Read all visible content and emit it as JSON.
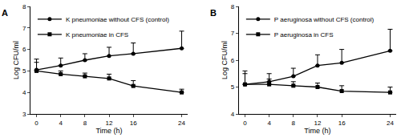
{
  "chart_data": [
    {
      "type": "line",
      "title": "A",
      "x_label": "Time (h)",
      "y_label": "Log CFU/ml",
      "x": [
        0,
        4,
        8,
        12,
        16,
        24
      ],
      "xlim": [
        -1,
        25
      ],
      "xticks": [
        0,
        4,
        8,
        12,
        16,
        24
      ],
      "ylim": [
        3,
        8
      ],
      "yticks": [
        3,
        4,
        5,
        6,
        7,
        8
      ],
      "grid": false,
      "legend": "upper left",
      "series": [
        {
          "name": "K pneumoniae without CFS (control)",
          "color": "#000000",
          "marker": "circle",
          "line_style": "solid",
          "values": [
            5.05,
            5.25,
            5.5,
            5.7,
            5.8,
            6.05
          ],
          "errors": [
            0.5,
            0.35,
            0.3,
            0.4,
            0.5,
            0.8
          ]
        },
        {
          "name": "K pneumoniae in CFS",
          "color": "#000000",
          "marker": "square",
          "line_style": "solid",
          "values": [
            5.0,
            4.85,
            4.75,
            4.65,
            4.3,
            4.0
          ],
          "errors": [
            0.4,
            0.15,
            0.15,
            0.2,
            0.25,
            0.15
          ]
        }
      ]
    },
    {
      "type": "line",
      "title": "B",
      "x_label": "Time (h)",
      "y_label": "Log CFU/ml",
      "x": [
        0,
        4,
        8,
        12,
        16,
        24
      ],
      "xlim": [
        -1,
        25
      ],
      "xticks": [
        0,
        4,
        8,
        12,
        16,
        24
      ],
      "ylim": [
        4,
        8
      ],
      "yticks": [
        4,
        5,
        6,
        7,
        8
      ],
      "grid": false,
      "legend": "upper left",
      "series": [
        {
          "name": "P aeruginosa without CFS (control)",
          "color": "#000000",
          "marker": "circle",
          "line_style": "solid",
          "values": [
            5.1,
            5.2,
            5.4,
            5.8,
            5.9,
            6.35
          ],
          "errors": [
            0.5,
            0.3,
            0.3,
            0.4,
            0.5,
            0.8
          ]
        },
        {
          "name": "P aeruginosa in CFS",
          "color": "#000000",
          "marker": "square",
          "line_style": "solid",
          "values": [
            5.1,
            5.1,
            5.05,
            5.0,
            4.85,
            4.8
          ],
          "errors": [
            0.4,
            0.2,
            0.15,
            0.15,
            0.2,
            0.2
          ]
        }
      ]
    }
  ]
}
